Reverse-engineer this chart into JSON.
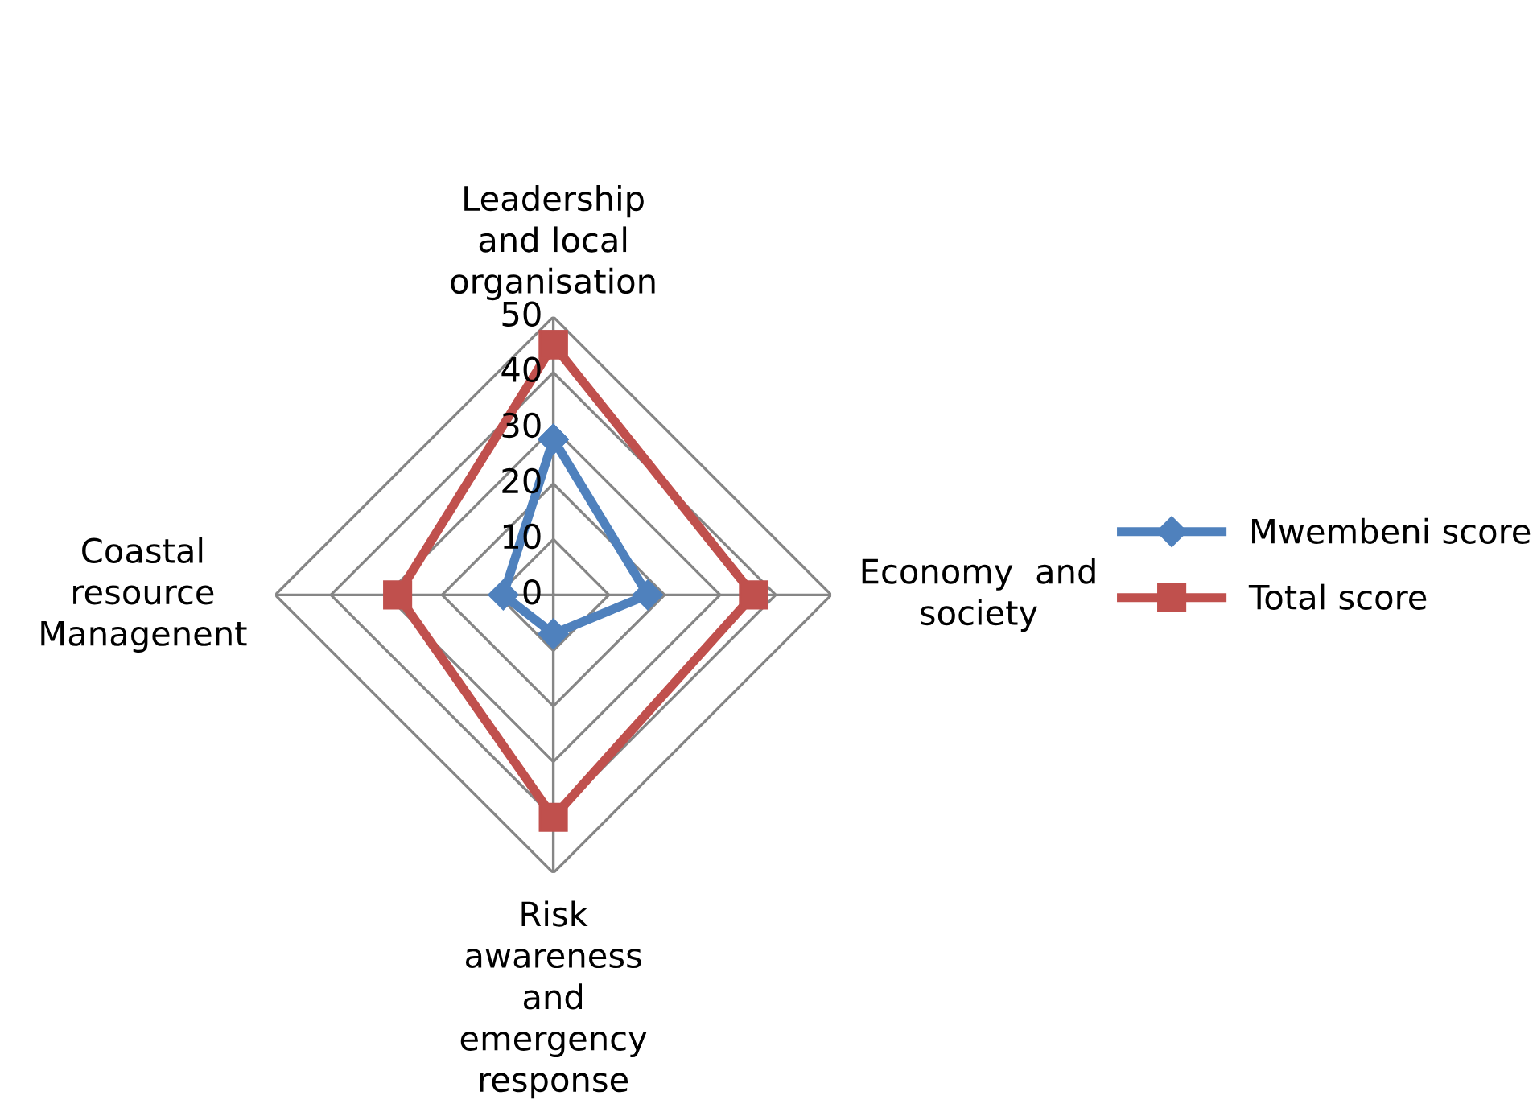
{
  "chart_data": {
    "type": "radar",
    "categories": [
      "Leadership\nand local\norganisation",
      "Economy  and\nsociety",
      "Risk\nawareness\nand\nemergency\nresponse",
      "Coastal\nresource\nManagenent"
    ],
    "series": [
      {
        "name": "Mwembeni score",
        "color": "#4f81bd",
        "marker": "diamond",
        "values": [
          28,
          17,
          7,
          9
        ]
      },
      {
        "name": "Total score",
        "color": "#c0504d",
        "marker": "square",
        "values": [
          45,
          36,
          40,
          28
        ]
      }
    ],
    "ylim": [
      0,
      50
    ],
    "yticks": [
      0,
      10,
      20,
      30,
      40,
      50
    ],
    "grid": true,
    "legend": "right",
    "line_style": "solid"
  }
}
